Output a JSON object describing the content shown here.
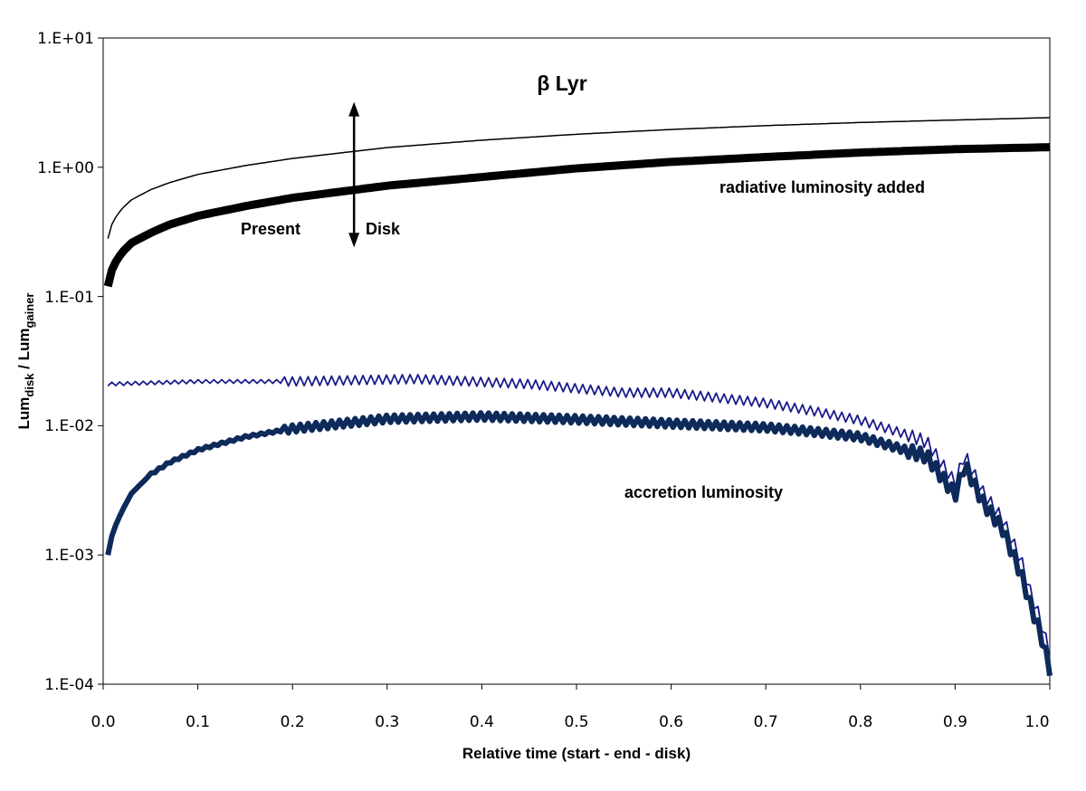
{
  "chart_data": {
    "type": "line",
    "title": "β Lyr",
    "xlabel": "Relative time (start - end - disk)",
    "ylabel": {
      "main1": "Lum",
      "sub1": "disk",
      "main2": " / Lum",
      "sub2": "gainer"
    },
    "xlim": [
      0.0,
      1.0
    ],
    "ylim": [
      0.0001,
      10
    ],
    "yscale": "log",
    "grid": false,
    "x_ticks": [
      "0.0",
      "0.1",
      "0.2",
      "0.3",
      "0.4",
      "0.5",
      "0.6",
      "0.7",
      "0.8",
      "0.9",
      "1.0"
    ],
    "y_ticks": [
      "1.E-04",
      "1.E-03",
      "1.E-02",
      "1.E-01",
      "1.E+00",
      "1.E+01"
    ],
    "series": [
      {
        "name": "radiative luminosity added (upper)",
        "color": "#000000",
        "weight": "thin",
        "x": [
          0.005,
          0.01,
          0.02,
          0.03,
          0.05,
          0.07,
          0.1,
          0.15,
          0.2,
          0.3,
          0.4,
          0.5,
          0.6,
          0.7,
          0.8,
          0.9,
          1.0
        ],
        "y": [
          0.28,
          0.38,
          0.48,
          0.56,
          0.67,
          0.76,
          0.88,
          1.03,
          1.17,
          1.42,
          1.62,
          1.8,
          1.96,
          2.1,
          2.22,
          2.32,
          2.42
        ]
      },
      {
        "name": "radiative luminosity added",
        "color": "#000000",
        "weight": "thick",
        "x": [
          0.005,
          0.01,
          0.02,
          0.03,
          0.05,
          0.07,
          0.1,
          0.15,
          0.2,
          0.3,
          0.4,
          0.5,
          0.6,
          0.7,
          0.8,
          0.9,
          1.0
        ],
        "y": [
          0.12,
          0.17,
          0.22,
          0.26,
          0.31,
          0.36,
          0.42,
          0.5,
          0.58,
          0.72,
          0.84,
          0.98,
          1.1,
          1.2,
          1.3,
          1.38,
          1.43
        ]
      },
      {
        "name": "accretion luminosity (upper)",
        "color": "#1a1a8c",
        "weight": "thin",
        "x": [
          0.005,
          0.1,
          0.19,
          0.2,
          0.33,
          0.45,
          0.55,
          0.6,
          0.7,
          0.75,
          0.8,
          0.85,
          0.87,
          0.9,
          0.91,
          0.93,
          0.95,
          0.97,
          0.98,
          0.99,
          1.0
        ],
        "y": [
          0.021,
          0.022,
          0.022,
          0.022,
          0.023,
          0.021,
          0.018,
          0.018,
          0.015,
          0.013,
          0.011,
          0.0085,
          0.0075,
          0.0036,
          0.006,
          0.003,
          0.0019,
          0.0009,
          0.0005,
          0.00032,
          0.00017
        ]
      },
      {
        "name": "accretion luminosity",
        "color": "#0e2a5a",
        "weight": "thick",
        "x": [
          0.005,
          0.01,
          0.02,
          0.03,
          0.05,
          0.07,
          0.1,
          0.15,
          0.2,
          0.3,
          0.4,
          0.5,
          0.6,
          0.7,
          0.75,
          0.8,
          0.85,
          0.87,
          0.9,
          0.91,
          0.93,
          0.95,
          0.97,
          0.98,
          0.99,
          1.0
        ],
        "y": [
          0.001,
          0.0015,
          0.0022,
          0.003,
          0.0042,
          0.0052,
          0.0065,
          0.0082,
          0.0095,
          0.0113,
          0.0118,
          0.0112,
          0.0104,
          0.0097,
          0.009,
          0.0082,
          0.0064,
          0.0058,
          0.0029,
          0.005,
          0.0025,
          0.0016,
          0.0007,
          0.0004,
          0.00025,
          0.00013
        ]
      }
    ],
    "annotations": {
      "radiative": "radiative luminosity added",
      "accretion": "accretion luminosity",
      "present": "Present",
      "disk": "Disk"
    },
    "present_disk_marker": {
      "x": 0.265,
      "y_top": 3.2,
      "y_bottom": 0.24
    }
  }
}
